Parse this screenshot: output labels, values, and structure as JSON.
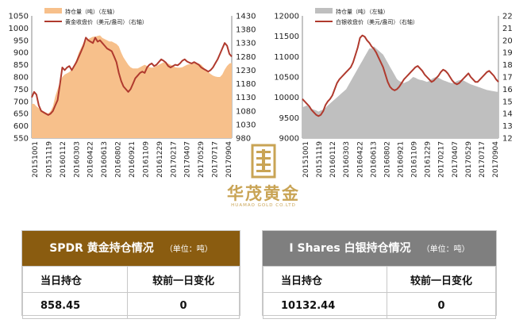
{
  "chart_data": [
    {
      "type": "line",
      "legend": [
        "持仓量（吨）（左轴）",
        "黄金收盘价（美元/盎司）（右轴）"
      ],
      "legend_position": "top-left",
      "x_ticks": [
        "20151001",
        "20151119",
        "20160112",
        "20160303",
        "20160422",
        "20160613",
        "20160802",
        "20160921",
        "20161109",
        "20161229",
        "20170217",
        "20170407",
        "20170529",
        "20170717",
        "20170904"
      ],
      "y_left_ticks": [
        "1050",
        "1000",
        "950",
        "900",
        "850",
        "800",
        "750",
        "700",
        "650",
        "600",
        "550"
      ],
      "y_right_ticks": [
        "1430",
        "1380",
        "1330",
        "1280",
        "1230",
        "1180",
        "1130",
        "1080",
        "1030",
        "980"
      ],
      "y_left_range": [
        550,
        1050
      ],
      "y_right_range": [
        980,
        1430
      ],
      "series": [
        {
          "name": "持仓量（吨）（左轴）",
          "type": "area",
          "axis": "left",
          "color": "#f7c08b",
          "values": [
            690,
            690,
            680,
            672,
            665,
            660,
            655,
            650,
            660,
            680,
            720,
            750,
            780,
            800,
            810,
            815,
            820,
            830,
            850,
            870,
            900,
            920,
            940,
            950,
            955,
            960,
            965,
            965,
            968,
            970,
            960,
            955,
            950,
            945,
            945,
            940,
            935,
            925,
            900,
            880,
            865,
            850,
            840,
            835,
            835,
            835,
            840,
            845,
            850,
            845,
            840,
            838,
            840,
            845,
            850,
            855,
            860,
            858,
            855,
            850,
            845,
            840,
            838,
            838,
            840,
            845,
            850,
            853,
            855,
            856,
            858,
            855,
            850,
            840,
            830,
            820,
            812,
            806,
            802,
            800,
            800,
            810,
            830,
            845,
            855,
            858
          ]
        },
        {
          "name": "黄金收盘价（美元/盎司）（右轴）",
          "type": "line",
          "axis": "right",
          "color": "#b03a2e",
          "values": [
            1130,
            1150,
            1140,
            1100,
            1080,
            1075,
            1070,
            1065,
            1070,
            1080,
            1100,
            1120,
            1180,
            1240,
            1230,
            1240,
            1245,
            1230,
            1245,
            1260,
            1280,
            1300,
            1320,
            1350,
            1340,
            1335,
            1330,
            1350,
            1335,
            1340,
            1330,
            1320,
            1310,
            1305,
            1300,
            1280,
            1260,
            1220,
            1190,
            1170,
            1160,
            1150,
            1160,
            1180,
            1200,
            1210,
            1220,
            1225,
            1220,
            1240,
            1250,
            1255,
            1245,
            1250,
            1260,
            1270,
            1265,
            1258,
            1245,
            1240,
            1245,
            1250,
            1248,
            1255,
            1265,
            1270,
            1262,
            1258,
            1255,
            1260,
            1255,
            1250,
            1240,
            1235,
            1230,
            1225,
            1230,
            1240,
            1255,
            1270,
            1290,
            1310,
            1330,
            1320,
            1290,
            1280
          ]
        }
      ]
    },
    {
      "type": "line",
      "legend": [
        "持仓量（吨）（左轴）",
        "白银收盘价（美元/盎司）（右轴）"
      ],
      "legend_position": "top-left",
      "x_ticks": [
        "20151001",
        "20151119",
        "20160112",
        "20160303",
        "20160422",
        "20160613",
        "20160802",
        "20160921",
        "20161109",
        "20161229",
        "20170217",
        "20170407",
        "20170529",
        "20170717",
        "20170904"
      ],
      "y_left_ticks": [
        "12000",
        "11500",
        "11000",
        "10500",
        "10000",
        "9500",
        "9000"
      ],
      "y_right_ticks": [
        "22",
        "21",
        "20",
        "19",
        "18",
        "17",
        "16",
        "15",
        "14",
        "13",
        "12"
      ],
      "y_left_range": [
        9000,
        12000
      ],
      "y_right_range": [
        12,
        22
      ],
      "series": [
        {
          "name": "持仓量（吨）（左轴）",
          "type": "area",
          "axis": "left",
          "color": "#bfbfbf",
          "values": [
            9750,
            9780,
            9800,
            9760,
            9720,
            9700,
            9680,
            9650,
            9680,
            9700,
            9740,
            9800,
            9850,
            9900,
            9950,
            10000,
            10050,
            10100,
            10150,
            10200,
            10300,
            10400,
            10500,
            10600,
            10700,
            10800,
            10900,
            11000,
            11100,
            11200,
            11200,
            11250,
            11200,
            11150,
            11100,
            11050,
            10950,
            10850,
            10750,
            10650,
            10550,
            10450,
            10400,
            10380,
            10350,
            10380,
            10400,
            10450,
            10500,
            10480,
            10450,
            10430,
            10420,
            10400,
            10380,
            10400,
            10450,
            10480,
            10500,
            10480,
            10450,
            10420,
            10400,
            10380,
            10360,
            10350,
            10370,
            10400,
            10420,
            10430,
            10410,
            10380,
            10350,
            10320,
            10300,
            10280,
            10260,
            10240,
            10220,
            10200,
            10180,
            10170,
            10160,
            10150,
            10140,
            10132
          ]
        },
        {
          "name": "白银收盘价（美元/盎司）（右轴）",
          "type": "line",
          "axis": "right",
          "color": "#b03a2e",
          "values": [
            15.2,
            15.0,
            14.8,
            14.6,
            14.3,
            14.1,
            13.9,
            13.8,
            13.9,
            14.2,
            14.7,
            15.0,
            15.2,
            15.5,
            16.0,
            16.5,
            16.8,
            17.0,
            17.2,
            17.4,
            17.6,
            17.8,
            18.2,
            18.8,
            19.4,
            20.2,
            20.4,
            20.3,
            20.0,
            19.8,
            19.5,
            19.3,
            19.0,
            18.6,
            18.2,
            17.8,
            17.2,
            16.6,
            16.2,
            16.0,
            15.9,
            16.0,
            16.2,
            16.5,
            16.8,
            17.0,
            17.2,
            17.4,
            17.6,
            17.8,
            17.9,
            17.7,
            17.5,
            17.2,
            17.0,
            16.8,
            16.6,
            16.7,
            16.9,
            17.1,
            17.4,
            17.6,
            17.5,
            17.3,
            17.0,
            16.7,
            16.5,
            16.4,
            16.5,
            16.7,
            16.9,
            17.1,
            17.3,
            17.0,
            16.8,
            16.6,
            16.6,
            16.8,
            17.0,
            17.2,
            17.4,
            17.5,
            17.3,
            17.1,
            16.8,
            16.6
          ]
        }
      ]
    }
  ],
  "logo": {
    "cn": "华茂黄金",
    "en": "HUAMAO GOLD CO.LTD"
  },
  "gold_panel": {
    "title": "SPDR 黄金持仓情况",
    "unit": "（单位：吨）",
    "header_color": "#8a5c10",
    "col1": "当日持仓",
    "col2": "较前一日变化",
    "val1": "858.45",
    "val2": "0"
  },
  "silver_panel": {
    "title": "I Shares 白银持仓情况",
    "unit": "（单位：吨）",
    "header_color": "#7f7f7f",
    "col1": "当日持仓",
    "col2": "较前一日变化",
    "val1": "10132.44",
    "val2": "0"
  }
}
